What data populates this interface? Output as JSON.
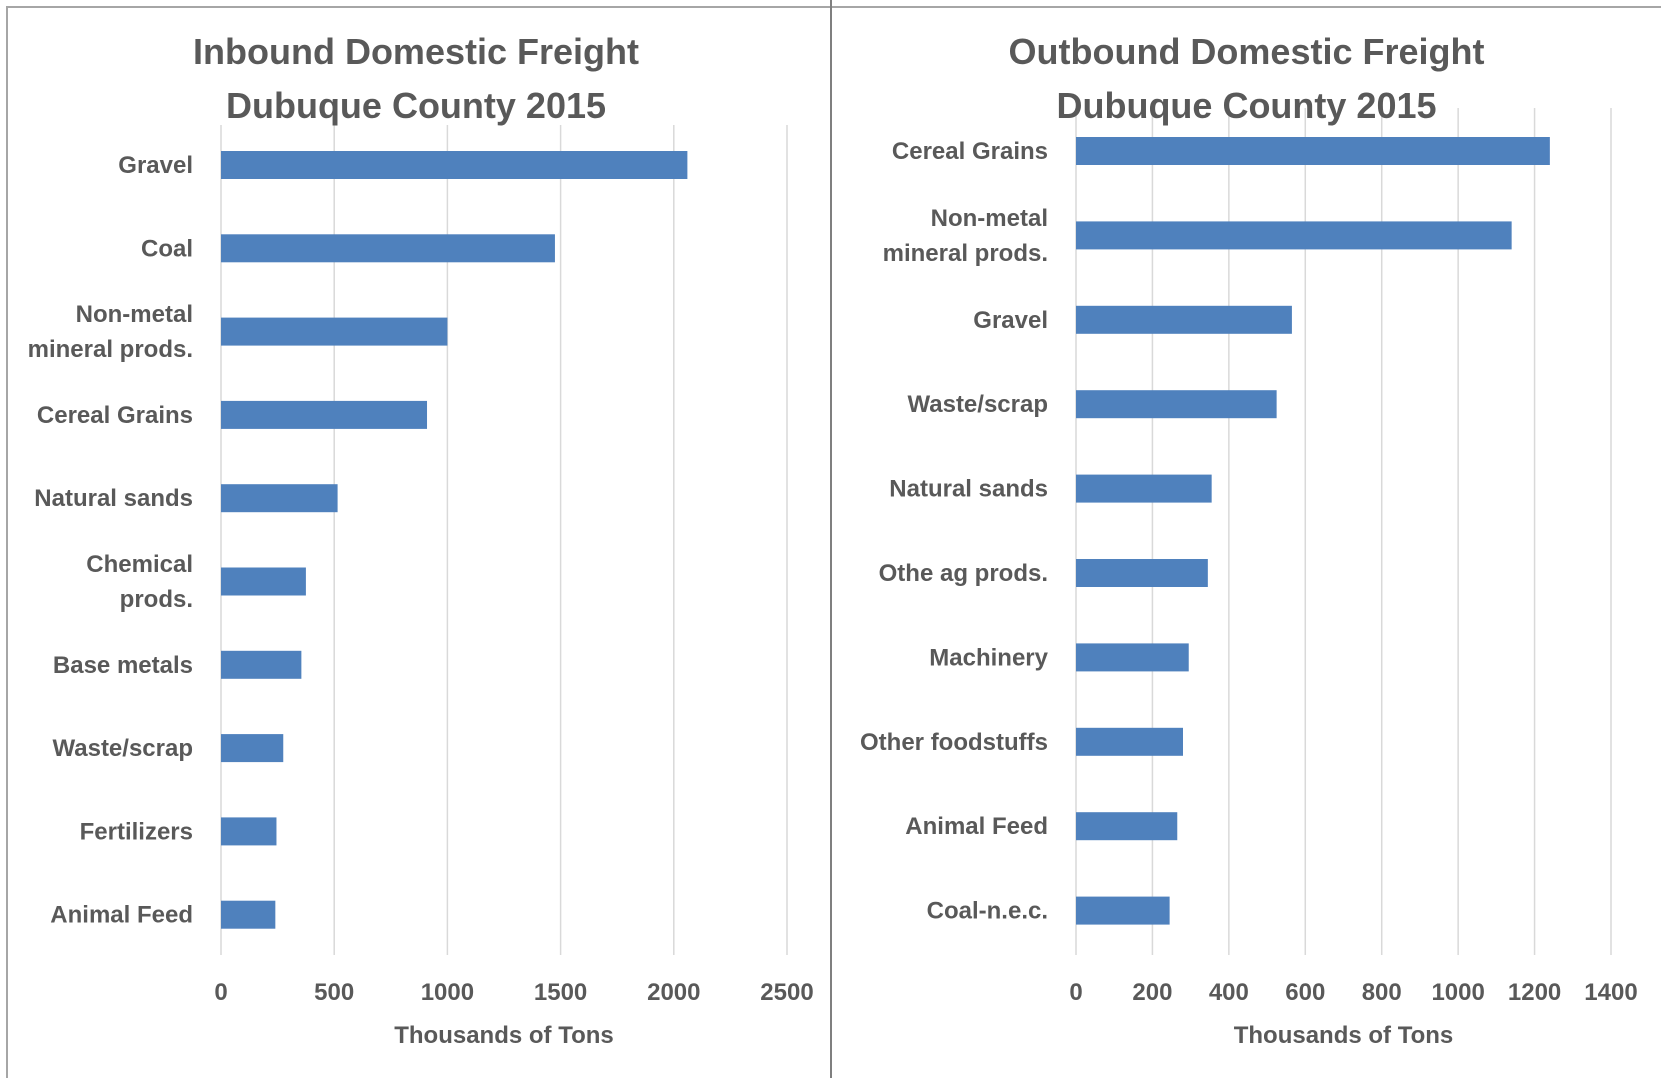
{
  "chart_data": [
    {
      "type": "bar",
      "orientation": "horizontal",
      "title_line1": "Inbound Domestic Freight",
      "title_line2": "Dubuque County 2015",
      "xlabel": "Thousands of Tons",
      "ylabel": "",
      "xlim": [
        0,
        2500
      ],
      "ticks": [
        0,
        500,
        1000,
        1500,
        2000,
        2500
      ],
      "grid": "vertical",
      "color": "#4f81bd",
      "categories": [
        [
          "Gravel"
        ],
        [
          "Coal"
        ],
        [
          "Non-metal",
          "mineral prods."
        ],
        [
          "Cereal Grains"
        ],
        [
          "Natural sands"
        ],
        [
          "Chemical",
          "prods."
        ],
        [
          "Base metals"
        ],
        [
          "Waste/scrap"
        ],
        [
          "Fertilizers"
        ],
        [
          "Animal Feed"
        ]
      ],
      "values": [
        2060,
        1475,
        1000,
        910,
        515,
        375,
        355,
        275,
        245,
        240
      ]
    },
    {
      "type": "bar",
      "orientation": "horizontal",
      "title_line1": "Outbound Domestic Freight",
      "title_line2": "Dubuque County 2015",
      "xlabel": "Thousands of Tons",
      "ylabel": "",
      "xlim": [
        0,
        1400
      ],
      "ticks": [
        0,
        200,
        400,
        600,
        800,
        1000,
        1200,
        1400
      ],
      "grid": "vertical",
      "color": "#4f81bd",
      "categories": [
        [
          "Cereal Grains"
        ],
        [
          "Non-metal",
          "mineral prods."
        ],
        [
          "Gravel"
        ],
        [
          "Waste/scrap"
        ],
        [
          "Natural sands"
        ],
        [
          "Othe ag prods."
        ],
        [
          "Machinery"
        ],
        [
          "Other foodstuffs"
        ],
        [
          "Animal Feed"
        ],
        [
          "Coal-n.e.c."
        ]
      ],
      "values": [
        1240,
        1140,
        565,
        525,
        355,
        345,
        295,
        280,
        265,
        245
      ]
    }
  ]
}
